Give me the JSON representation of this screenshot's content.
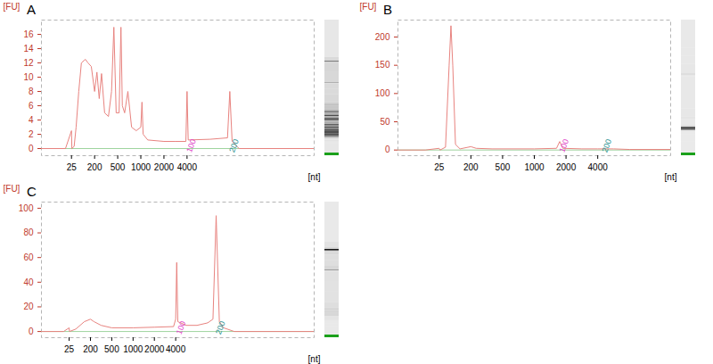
{
  "chart_data": [
    {
      "type": "line",
      "title": "A",
      "color": "#e8837f",
      "x_label": "[nt]",
      "y_label": "[FU]",
      "xlim": [
        10,
        15000
      ],
      "xticks": [
        25,
        200,
        500,
        1000,
        2000,
        4000
      ],
      "ylim": [
        -1,
        18
      ],
      "yticks": [
        0,
        2,
        4,
        6,
        8,
        10,
        12,
        14,
        16
      ],
      "x": [
        10,
        22,
        25,
        28,
        45,
        60,
        80,
        100,
        130,
        150,
        175,
        200,
        230,
        260,
        290,
        330,
        380,
        420,
        450,
        480,
        530,
        570,
        600,
        650,
        720,
        800,
        900,
        1000,
        1050,
        1100,
        1300,
        2000,
        3000,
        3900,
        4000,
        4100,
        6000,
        7500,
        7700,
        7900,
        8500,
        15000
      ],
      "values": [
        0,
        0,
        2.5,
        0,
        0.3,
        3,
        8,
        12,
        12.5,
        12,
        11.5,
        8,
        10.7,
        7,
        10.5,
        5,
        4.5,
        8,
        17,
        5,
        5,
        17,
        6,
        5,
        8,
        3,
        2.5,
        3,
        6.5,
        2,
        1.2,
        1,
        1,
        1,
        8,
        1.2,
        1.3,
        1.5,
        8,
        1,
        0,
        0
      ],
      "annotations": [
        {
          "text": "100",
          "x": 4000,
          "color": "#e040c8"
        },
        {
          "text": "200",
          "x": 7700,
          "color": "#2a8f8f"
        }
      ]
    },
    {
      "type": "line",
      "title": "B",
      "color": "#e8837f",
      "x_label": "[nt]",
      "y_label": "[FU]",
      "xlim": [
        10,
        8600
      ],
      "xticks": [
        25,
        200,
        500,
        1000,
        2000,
        4000
      ],
      "ylim": [
        -10,
        230
      ],
      "yticks": [
        0,
        50,
        100,
        150,
        200
      ],
      "x": [
        10,
        20,
        25,
        30,
        60,
        80,
        90,
        100,
        115,
        140,
        200,
        250,
        400,
        1000,
        1700,
        1800,
        1900,
        3000,
        4000,
        5000,
        6000,
        8600
      ],
      "values": [
        0,
        0,
        3,
        0,
        5,
        150,
        220,
        150,
        10,
        2,
        6,
        3,
        2,
        2,
        3,
        15,
        3,
        2,
        2,
        2,
        1,
        1
      ],
      "annotations": [
        {
          "text": "100",
          "x": 1800,
          "color": "#e040c8"
        },
        {
          "text": "200",
          "x": 4300,
          "color": "#2a8f8f"
        }
      ]
    },
    {
      "type": "line",
      "title": "C",
      "color": "#e8837f",
      "x_label": "[nt]",
      "y_label": "[FU]",
      "xlim": [
        10,
        17000
      ],
      "xticks": [
        25,
        200,
        500,
        1000,
        2000,
        4000
      ],
      "ylim": [
        -5,
        105
      ],
      "yticks": [
        0,
        20,
        40,
        60,
        80,
        100
      ],
      "x": [
        10,
        22,
        25,
        28,
        80,
        150,
        200,
        250,
        350,
        500,
        1000,
        2000,
        3800,
        4000,
        4100,
        4200,
        5000,
        6000,
        7000,
        7500,
        7800,
        8100,
        8500,
        9500,
        17000
      ],
      "values": [
        0,
        0,
        3,
        0,
        2,
        8,
        10,
        8,
        5,
        3,
        3,
        3.5,
        4,
        10,
        56,
        8,
        5,
        5,
        7,
        10,
        94,
        8,
        3,
        0,
        0
      ],
      "annotations": [
        {
          "text": "100",
          "x": 4100,
          "color": "#e040c8"
        },
        {
          "text": "200",
          "x": 7800,
          "color": "#2a8f8f"
        }
      ]
    }
  ]
}
